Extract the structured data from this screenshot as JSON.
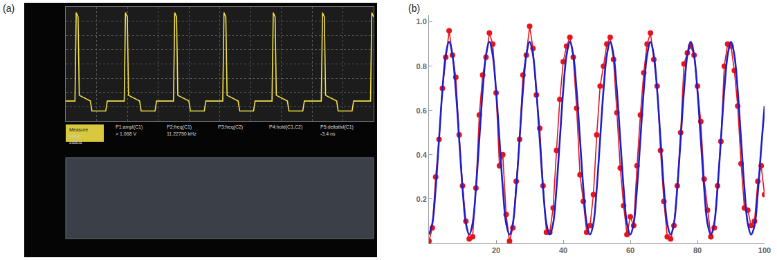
{
  "chart_data": [
    {
      "label": "(a)",
      "type": "line",
      "grid": true,
      "tick_labels": false,
      "xlim": [
        0,
        10
      ],
      "ylim": [
        0,
        8
      ],
      "xticks": [
        0,
        1,
        2,
        3,
        4,
        5,
        6,
        7,
        8,
        9,
        10
      ],
      "yticks": [
        0,
        1,
        2,
        3,
        4,
        5,
        6,
        7,
        8
      ],
      "x": [
        0,
        0.3,
        0.34,
        0.4,
        0.44,
        0.8,
        0.85,
        1.3,
        1.35,
        1.9,
        1.94,
        2.0,
        2.04,
        2.4,
        2.45,
        2.9,
        2.95,
        3.5,
        3.54,
        3.6,
        3.64,
        4.0,
        4.05,
        4.5,
        4.55,
        5.1,
        5.14,
        5.2,
        5.24,
        5.6,
        5.65,
        6.1,
        6.15,
        6.7,
        6.74,
        6.8,
        6.84,
        7.2,
        7.25,
        7.7,
        7.75,
        8.3,
        8.34,
        8.4,
        8.44,
        8.8,
        8.85,
        9.3,
        9.35,
        9.9,
        9.94,
        10
      ],
      "series": [
        {
          "color": "#f2e24a",
          "line_style": "solid",
          "marker": "none",
          "values": [
            1.4,
            1.4,
            7.6,
            7.3,
            1.8,
            1.4,
            0.7,
            0.7,
            1.4,
            1.4,
            7.6,
            7.3,
            1.8,
            1.4,
            0.7,
            0.7,
            1.4,
            1.4,
            7.6,
            7.3,
            1.8,
            1.4,
            0.7,
            0.7,
            1.4,
            1.4,
            7.6,
            7.3,
            1.8,
            1.4,
            0.7,
            0.7,
            1.4,
            1.4,
            7.6,
            7.3,
            1.8,
            1.4,
            0.7,
            0.7,
            1.4,
            1.4,
            7.6,
            7.3,
            1.8,
            1.4,
            0.7,
            0.7,
            1.4,
            1.4,
            7.6,
            7.3
          ]
        }
      ],
      "annotations": {
        "headers": [
          "Measure",
          "value",
          "status"
        ],
        "measures": [
          {
            "label": "P1:ampl(C1)",
            "value": "> 1.068 V"
          },
          {
            "label": "P2:freq(C1)",
            "value": "11.22750 kHz"
          },
          {
            "label": "P3:freq(C2)"
          },
          {
            "label": "P4:hold(C1,C2)"
          },
          {
            "label": "P5:deltatlvl(C1)",
            "value": "-3.4 ns"
          }
        ]
      }
    },
    {
      "label": "(b)",
      "type": "line",
      "grid": false,
      "xlim": [
        0,
        100
      ],
      "ylim": [
        0,
        1.03
      ],
      "xticks": [
        20,
        40,
        60,
        80,
        100
      ],
      "yticks": [
        0.2,
        0.4,
        0.6,
        0.8,
        {
          "value": 1,
          "label": "1.0"
        }
      ],
      "x": [
        0,
        1,
        2,
        3,
        4,
        5,
        6,
        7,
        8,
        9,
        10,
        11,
        12,
        13,
        14,
        15,
        16,
        17,
        18,
        19,
        20,
        21,
        22,
        23,
        24,
        25,
        26,
        27,
        28,
        29,
        30,
        31,
        32,
        33,
        34,
        35,
        36,
        37,
        38,
        39,
        40,
        41,
        42,
        43,
        44,
        45,
        46,
        47,
        48,
        49,
        50,
        51,
        52,
        53,
        54,
        55,
        56,
        57,
        58,
        59,
        60,
        61,
        62,
        63,
        64,
        65,
        66,
        67,
        68,
        69,
        70,
        71,
        72,
        73,
        74,
        75,
        76,
        77,
        78,
        79,
        80,
        81,
        82,
        83,
        84,
        85,
        86,
        87,
        88,
        89,
        90,
        91,
        92,
        93,
        94,
        95,
        96,
        97,
        98,
        99,
        100
      ],
      "series": [
        {
          "color": "#e8141c",
          "marker": "circle",
          "line_style": "solid",
          "values": [
            0.01,
            0.07,
            0.3,
            0.47,
            0.7,
            0.84,
            0.96,
            0.85,
            0.75,
            0.49,
            0.26,
            0.1,
            0.02,
            0.03,
            0.25,
            0.58,
            0.76,
            0.84,
            0.95,
            0.9,
            0.68,
            0.35,
            0.4,
            0.13,
            0.01,
            0.07,
            0.28,
            0.47,
            0.76,
            0.85,
            0.98,
            0.88,
            0.67,
            0.52,
            0.26,
            0.05,
            0.05,
            0.16,
            0.42,
            0.65,
            0.82,
            0.89,
            0.93,
            0.84,
            0.61,
            0.31,
            0.19,
            0.05,
            0.08,
            0.22,
            0.49,
            0.71,
            0.8,
            0.9,
            0.93,
            0.83,
            0.59,
            0.34,
            0.17,
            0.04,
            0.12,
            0.08,
            0.35,
            0.58,
            0.77,
            0.9,
            0.95,
            0.83,
            0.71,
            0.42,
            0.19,
            0.03,
            0.02,
            0.08,
            0.26,
            0.5,
            0.81,
            0.86,
            0.89,
            0.85,
            0.71,
            0.55,
            0.29,
            0.15,
            0.03,
            0.07,
            0.26,
            0.46,
            0.8,
            0.9,
            0.89,
            0.78,
            0.62,
            0.36,
            0.16,
            0.15,
            0.08,
            0.1,
            0.28,
            0.35,
            0.22
          ]
        },
        {
          "color": "#1e1ec8",
          "marker": "none",
          "line_style": "smooth",
          "values": [
            0.04,
            0.09,
            0.25,
            0.47,
            0.69,
            0.85,
            0.91,
            0.85,
            0.69,
            0.47,
            0.25,
            0.09,
            0.04,
            0.09,
            0.25,
            0.47,
            0.69,
            0.85,
            0.91,
            0.85,
            0.69,
            0.47,
            0.25,
            0.09,
            0.04,
            0.09,
            0.25,
            0.47,
            0.69,
            0.85,
            0.91,
            0.85,
            0.69,
            0.47,
            0.25,
            0.09,
            0.04,
            0.09,
            0.25,
            0.47,
            0.69,
            0.85,
            0.91,
            0.85,
            0.69,
            0.47,
            0.25,
            0.09,
            0.04,
            0.09,
            0.25,
            0.47,
            0.69,
            0.85,
            0.91,
            0.85,
            0.69,
            0.47,
            0.25,
            0.09,
            0.04,
            0.09,
            0.25,
            0.47,
            0.69,
            0.85,
            0.91,
            0.85,
            0.69,
            0.47,
            0.25,
            0.09,
            0.04,
            0.09,
            0.25,
            0.47,
            0.69,
            0.85,
            0.91,
            0.85,
            0.69,
            0.47,
            0.25,
            0.09,
            0.04,
            0.09,
            0.25,
            0.47,
            0.69,
            0.85,
            0.91,
            0.85,
            0.69,
            0.47,
            0.25,
            0.09,
            0.04,
            0.08,
            0.23,
            0.43,
            0.62
          ]
        }
      ]
    }
  ]
}
